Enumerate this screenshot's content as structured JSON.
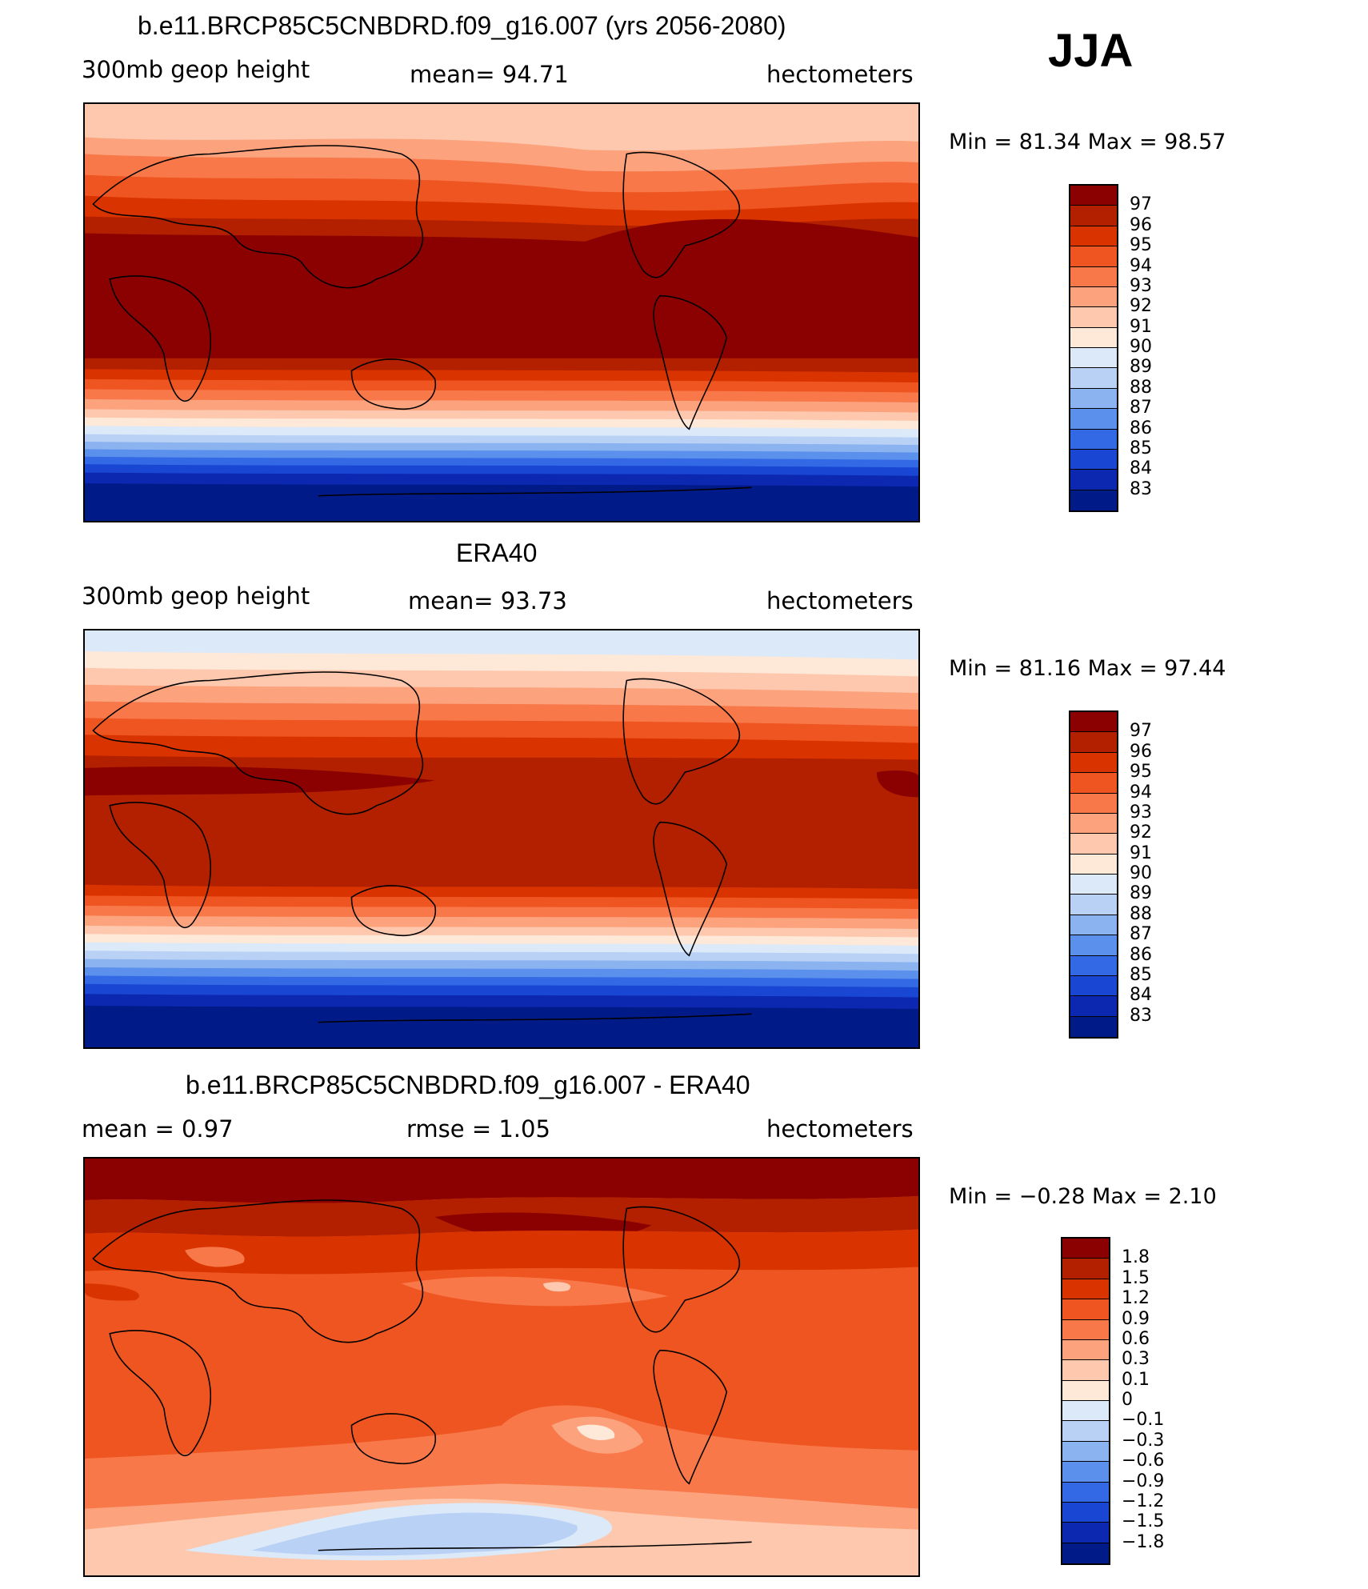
{
  "season_label": "JJA",
  "panels": [
    {
      "title": "b.e11.BRCP85C5CNBDRD.f09_g16.007 (yrs 2056-2080)",
      "left_label": "300mb  geop  height",
      "center_label": "mean=   94.71",
      "units": "hectometers",
      "minmax": "Min  =    81.34  Max  =    98.57",
      "colorbar": {
        "labels": [
          "97",
          "96",
          "95",
          "94",
          "93",
          "92",
          "91",
          "90",
          "89",
          "88",
          "87",
          "86",
          "85",
          "84",
          "83"
        ],
        "colors": [
          "#8b0000",
          "#b22000",
          "#d93300",
          "#ef5520",
          "#f8784a",
          "#fca37e",
          "#fdc8ad",
          "#fee8d8",
          "#dbe9f9",
          "#b8d1f5",
          "#8ab3f0",
          "#5b90ec",
          "#3369e4",
          "#1a46d4",
          "#0c28b0",
          "#001a88"
        ]
      }
    },
    {
      "title": "ERA40",
      "left_label": "300mb  geop  height",
      "center_label": "mean=   93.73",
      "units": "hectometers",
      "minmax": "Min  =    81.16  Max  =    97.44",
      "colorbar": {
        "labels": [
          "97",
          "96",
          "95",
          "94",
          "93",
          "92",
          "91",
          "90",
          "89",
          "88",
          "87",
          "86",
          "85",
          "84",
          "83"
        ],
        "colors": [
          "#8b0000",
          "#b22000",
          "#d93300",
          "#ef5520",
          "#f8784a",
          "#fca37e",
          "#fdc8ad",
          "#fee8d8",
          "#dbe9f9",
          "#b8d1f5",
          "#8ab3f0",
          "#5b90ec",
          "#3369e4",
          "#1a46d4",
          "#0c28b0",
          "#001a88"
        ]
      }
    },
    {
      "title": "b.e11.BRCP85C5CNBDRD.f09_g16.007 - ERA40",
      "left_label": "mean  =      0.97",
      "center_label": "rmse  =      1.05",
      "units": "hectometers",
      "minmax": "Min  =   −0.28  Max  =      2.10",
      "colorbar": {
        "labels": [
          "1.8",
          "1.5",
          "1.2",
          "0.9",
          "0.6",
          "0.3",
          "0.1",
          "0",
          "−0.1",
          "−0.3",
          "−0.6",
          "−0.9",
          "−1.2",
          "−1.5",
          "−1.8"
        ],
        "colors": [
          "#8b0000",
          "#b22000",
          "#d93300",
          "#ef5520",
          "#f8784a",
          "#fca37e",
          "#fdc8ad",
          "#fee8d8",
          "#dbe9f9",
          "#b8d1f5",
          "#8ab3f0",
          "#5b90ec",
          "#3369e4",
          "#1a46d4",
          "#0c28b0",
          "#001a88"
        ]
      }
    }
  ]
}
